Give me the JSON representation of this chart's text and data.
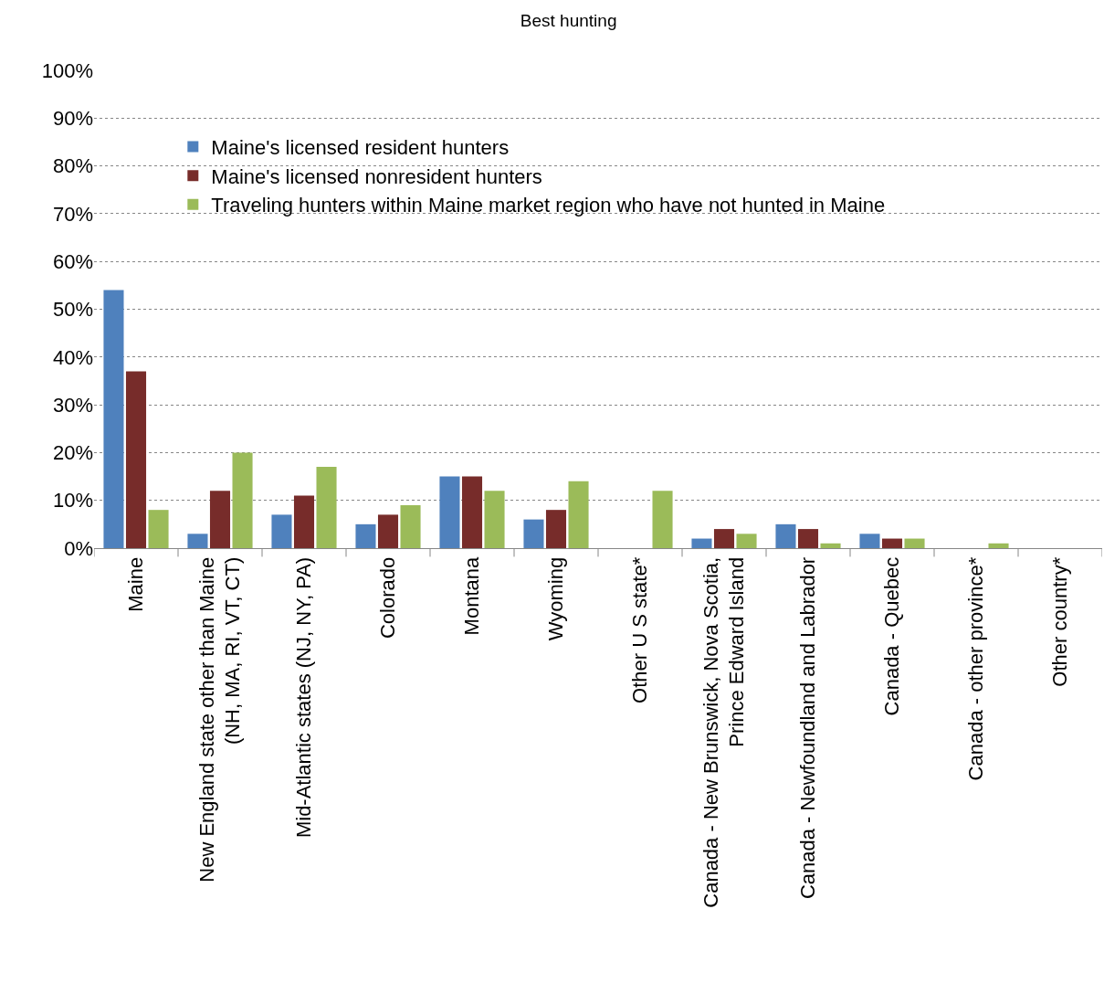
{
  "chart_data": {
    "type": "bar",
    "title": "Best hunting",
    "categories": [
      "Maine",
      "New England state other than Maine\n(NH, MA, RI, VT, CT)",
      "Mid-Atlantic states (NJ, NY, PA)",
      "Colorado",
      "Montana",
      "Wyoming",
      "Other U S state*",
      "Canada - New Brunswick, Nova Scotia,\nPrince Edward Island",
      "Canada - Newfoundland and Labrador",
      "Canada - Quebec",
      "Canada - other province*",
      "Other country*"
    ],
    "series": [
      {
        "name": "Maine's licensed resident hunters",
        "color": "#4f81bd",
        "values": [
          54,
          3,
          7,
          5,
          15,
          6,
          0,
          2,
          5,
          3,
          0,
          0
        ]
      },
      {
        "name": "Maine's licensed nonresident hunters",
        "color": "#772c2a",
        "values": [
          37,
          12,
          11,
          7,
          15,
          8,
          0,
          4,
          4,
          2,
          0,
          0
        ]
      },
      {
        "name": "Traveling hunters within Maine market region who have not hunted in Maine",
        "color": "#9bbb59",
        "values": [
          8,
          20,
          17,
          9,
          12,
          14,
          12,
          3,
          1,
          2,
          1,
          0
        ]
      }
    ],
    "ylim": [
      0,
      100
    ],
    "yticks": [
      {
        "value": 0,
        "label": "0%"
      },
      {
        "value": 10,
        "label": "10%"
      },
      {
        "value": 20,
        "label": "20%"
      },
      {
        "value": 30,
        "label": "30%"
      },
      {
        "value": 40,
        "label": "40%"
      },
      {
        "value": 50,
        "label": "50%"
      },
      {
        "value": 60,
        "label": "60%"
      },
      {
        "value": 70,
        "label": "70%"
      },
      {
        "value": 80,
        "label": "80%"
      },
      {
        "value": 90,
        "label": "90%"
      },
      {
        "value": 100,
        "label": "100%"
      }
    ],
    "grid": "y",
    "legend": "top left"
  }
}
